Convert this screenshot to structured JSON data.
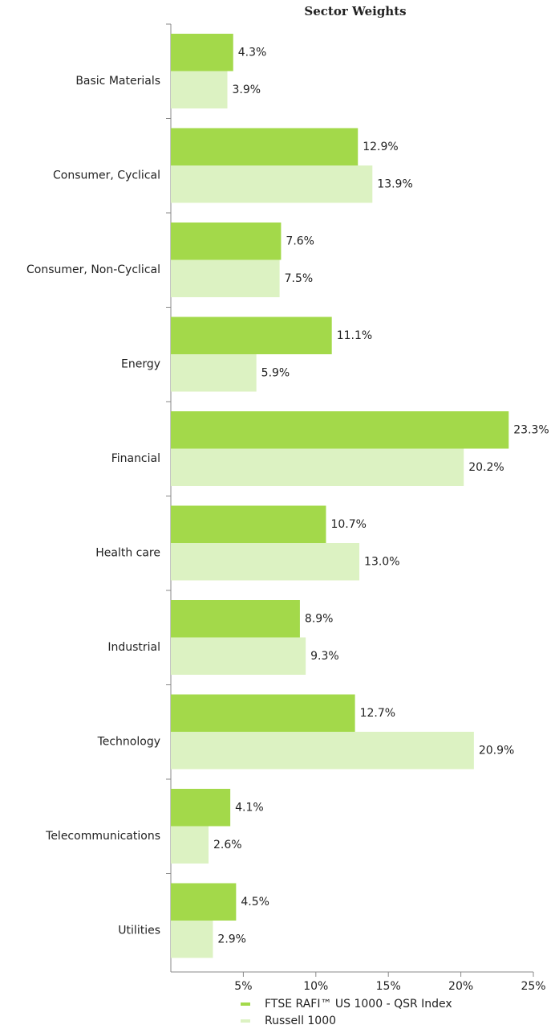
{
  "chart_data": {
    "type": "hbar",
    "title": "Sector Weights",
    "categories": [
      "Basic Materials",
      "Consumer, Cyclical",
      "Consumer, Non-Cyclical",
      "Energy",
      "Financial",
      "Health care",
      "Industrial",
      "Technology",
      "Telecommunications",
      "Utilities"
    ],
    "series": [
      {
        "name": "FTSE RAFI™ US 1000 - QSR Index",
        "color": "#a3d94a",
        "values": [
          4.3,
          12.9,
          7.6,
          11.1,
          23.3,
          10.7,
          8.9,
          12.7,
          4.1,
          4.5
        ],
        "value_labels": [
          "4.3%",
          "12.9%",
          "7.6%",
          "11.1%",
          "23.3%",
          "10.7%",
          "8.9%",
          "12.7%",
          "4.1%",
          "4.5%"
        ]
      },
      {
        "name": "Russell 1000",
        "color": "#dcf2c2",
        "values": [
          3.9,
          13.9,
          7.5,
          5.9,
          20.2,
          13.0,
          9.3,
          20.9,
          2.6,
          2.9
        ],
        "value_labels": [
          "3.9%",
          "13.9%",
          "7.5%",
          "5.9%",
          "20.2%",
          "13.0%",
          "9.3%",
          "20.9%",
          "2.6%",
          "2.9%"
        ]
      }
    ],
    "xlim": [
      0,
      25
    ],
    "xticks": [
      {
        "value": 5,
        "label": "5%"
      },
      {
        "value": 10,
        "label": "10%"
      },
      {
        "value": 15,
        "label": "15%"
      },
      {
        "value": 20,
        "label": "20%"
      },
      {
        "value": 25,
        "label": "25%"
      }
    ]
  }
}
